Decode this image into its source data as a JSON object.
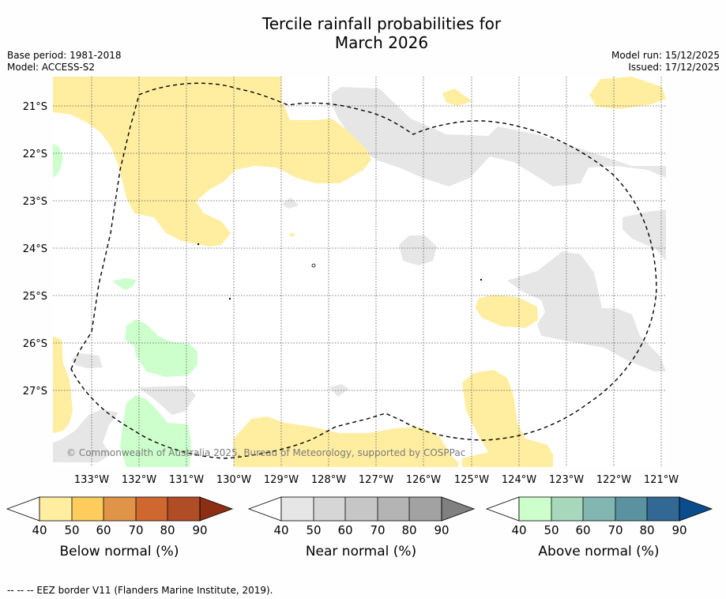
{
  "header": {
    "title_line1": "Tercile rainfall probabilities for",
    "title_line2": "March 2026",
    "base_period": "Base period: 1981-2018",
    "model": "Model: ACCESS-S2",
    "model_run": "Model run: 15/12/2025",
    "issued": "Issued: 17/12/2025"
  },
  "map": {
    "lat_labels": [
      "21°S",
      "22°S",
      "23°S",
      "24°S",
      "25°S",
      "26°S",
      "27°S"
    ],
    "lon_labels": [
      "133°W",
      "132°W",
      "131°W",
      "130°W",
      "129°W",
      "128°W",
      "127°W",
      "126°W",
      "125°W",
      "124°W",
      "123°W",
      "122°W",
      "121°W"
    ],
    "copyright": "© Commonwealth of Australia 2025, Bureau of Meteorology, supported by COSPPac",
    "colors": {
      "below_40": "#ffeda0",
      "near_40": "#e6e6e6",
      "above_40": "#ccffcc",
      "eez_border": "#000000"
    }
  },
  "legends": [
    {
      "title": "Below normal (%)",
      "ticks": [
        "40",
        "50",
        "60",
        "70",
        "80",
        "90"
      ],
      "colors": [
        "#ffeda0",
        "#fecc5c",
        "#e09448",
        "#cf6830",
        "#b04c26",
        "#8b2e14"
      ]
    },
    {
      "title": "Near normal (%)",
      "ticks": [
        "40",
        "50",
        "60",
        "70",
        "80",
        "90"
      ],
      "colors": [
        "#e6e6e6",
        "#d6d6d6",
        "#c6c6c6",
        "#b4b4b4",
        "#a2a2a2",
        "#808080"
      ]
    },
    {
      "title": "Above normal (%)",
      "ticks": [
        "40",
        "50",
        "60",
        "70",
        "80",
        "90"
      ],
      "colors": [
        "#ccffcc",
        "#a8d8bc",
        "#82b6b0",
        "#5a92a0",
        "#326894",
        "#0b4c8c"
      ]
    }
  ],
  "footnote": "--  --  -- EEZ border V11 (Flanders Marine Institute, 2019)."
}
